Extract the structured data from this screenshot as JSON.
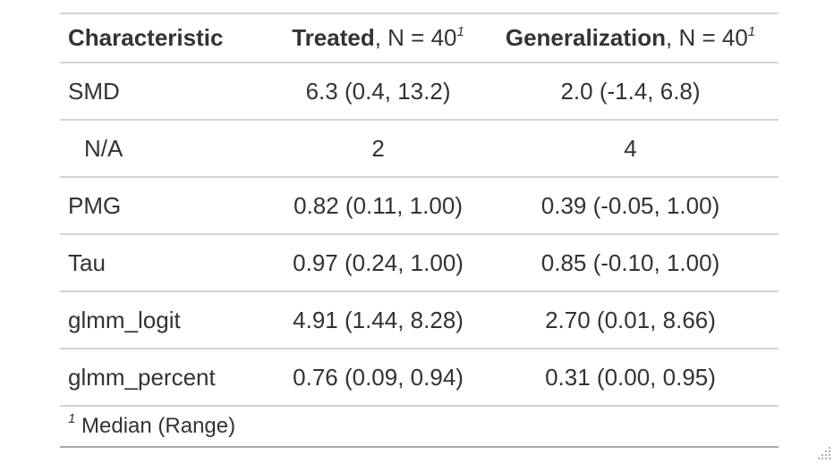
{
  "table": {
    "header": {
      "characteristic": "Characteristic",
      "treated_name": "Treated",
      "treated_n": ", N = 40",
      "treated_sup": "1",
      "gen_name": "Generalization",
      "gen_n": ", N = 40",
      "gen_sup": "1"
    },
    "rows": [
      {
        "label": "SMD",
        "treated": "6.3 (0.4, 13.2)",
        "generalization": "2.0 (-1.4, 6.8)"
      },
      {
        "label": "N/A",
        "treated": "2",
        "generalization": "4"
      },
      {
        "label": "PMG",
        "treated": "0.82 (0.11, 1.00)",
        "generalization": "0.39 (-0.05, 1.00)"
      },
      {
        "label": "Tau",
        "treated": "0.97 (0.24, 1.00)",
        "generalization": "0.85 (-0.10, 1.00)"
      },
      {
        "label": "glmm_logit",
        "treated": "4.91 (1.44, 8.28)",
        "generalization": "2.70 (0.01, 8.66)"
      },
      {
        "label": "glmm_percent",
        "treated": "0.76 (0.09, 0.94)",
        "generalization": "0.31 (0.00, 0.95)"
      }
    ],
    "footnote": {
      "marker": "1",
      "text": " Median (Range)"
    }
  },
  "icons": {
    "resize_grip": "resize-grip-icon"
  },
  "colors": {
    "text": "#333333",
    "rule": "#d3d3d3",
    "bottom_rule": "#a8a8a8"
  }
}
